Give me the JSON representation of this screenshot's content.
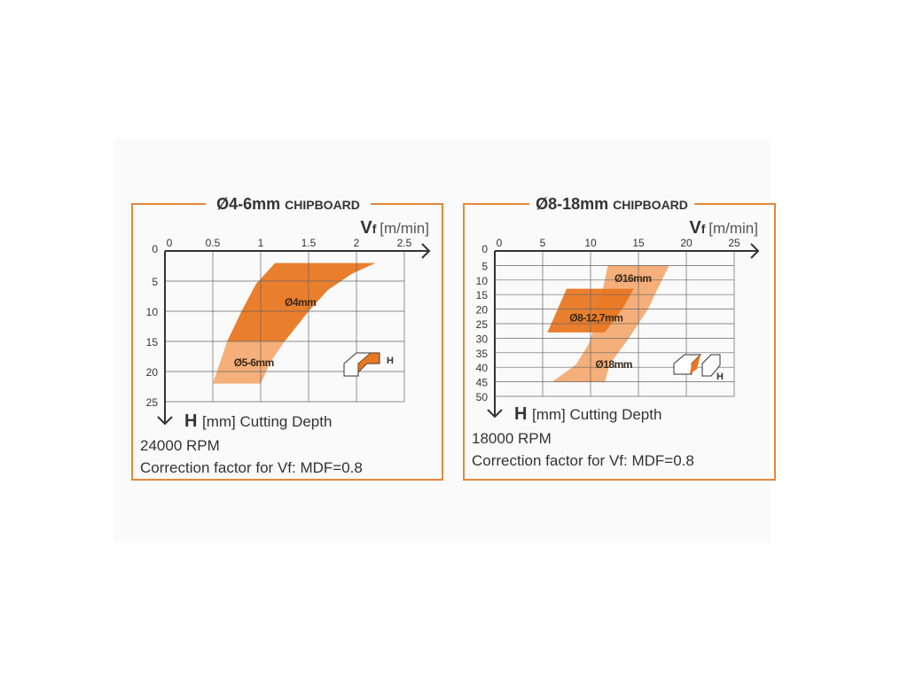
{
  "colors": {
    "frame": "#e8873a",
    "dark": "#e87722",
    "light": "#f3a66b",
    "grid": "#666666",
    "text": "#333333"
  },
  "chart_data": [
    {
      "type": "area",
      "title": "Ø4-6mm",
      "title_suffix": "Chipboard",
      "xlabel_main": "Vf",
      "xlabel_unit": "[m/min]",
      "ylabel_main": "H",
      "ylabel_unit": "[mm] Cutting Depth",
      "xlim": [
        0,
        2.5
      ],
      "ylim": [
        0,
        25
      ],
      "y_inverted": true,
      "grid": true,
      "xticks": [
        "0",
        "0.5",
        "1",
        "1.5",
        "2",
        "2.5"
      ],
      "yticks": [
        "0",
        "5",
        "10",
        "15",
        "20",
        "25"
      ],
      "regions": [
        {
          "name": "Ø5-6mm",
          "shade": "light",
          "label_at": [
            0.72,
            18.5
          ],
          "points": [
            [
              0.65,
              15
            ],
            [
              1.25,
              15
            ],
            [
              1.1,
              18.5
            ],
            [
              1.0,
              22
            ],
            [
              0.5,
              22
            ]
          ]
        },
        {
          "name": "Ø4mm",
          "shade": "dark",
          "label_at": [
            1.25,
            8.5
          ],
          "points": [
            [
              1.15,
              2
            ],
            [
              2.2,
              2
            ],
            [
              1.95,
              3.8
            ],
            [
              1.7,
              6.5
            ],
            [
              1.5,
              10
            ],
            [
              1.25,
              15
            ],
            [
              0.65,
              15
            ],
            [
              0.8,
              10
            ],
            [
              0.95,
              5.5
            ]
          ]
        }
      ],
      "notes": [
        "24000 RPM",
        "Correction factor for Vf: MDF=0.8"
      ]
    },
    {
      "type": "area",
      "title": "Ø8-18mm",
      "title_suffix": "Chipboard",
      "xlabel_main": "Vf",
      "xlabel_unit": "[m/min]",
      "ylabel_main": "H",
      "ylabel_unit": "[mm] Cutting Depth",
      "xlim": [
        0,
        25
      ],
      "ylim": [
        0,
        50
      ],
      "y_inverted": true,
      "grid": true,
      "xticks": [
        "0",
        "5",
        "10",
        "15",
        "20",
        "25"
      ],
      "yticks": [
        "0",
        "5",
        "10",
        "15",
        "20",
        "25",
        "30",
        "35",
        "40",
        "45",
        "50"
      ],
      "regions": [
        {
          "name": "Ø18mm",
          "shade": "light",
          "label_at": [
            10.5,
            39
          ],
          "points": [
            [
              11.8,
              5
            ],
            [
              18.2,
              5
            ],
            [
              17.3,
              11
            ],
            [
              16,
              20
            ],
            [
              14,
              30
            ],
            [
              12,
              39
            ],
            [
              11.5,
              45
            ],
            [
              6,
              45
            ],
            [
              8.5,
              39
            ],
            [
              9.8,
              32
            ],
            [
              10.2,
              28
            ],
            [
              11.3,
              13
            ]
          ]
        },
        {
          "name": "Ø16mm",
          "shade": "none",
          "label_at": [
            12.5,
            9.5
          ],
          "points": []
        },
        {
          "name": "Ø8-12,7mm",
          "shade": "dark",
          "label_at": [
            7.8,
            23
          ],
          "points": [
            [
              7.5,
              13
            ],
            [
              14.5,
              13
            ],
            [
              13.5,
              19
            ],
            [
              11.5,
              28
            ],
            [
              5.5,
              28
            ]
          ]
        }
      ],
      "notes": [
        "18000 RPM",
        "Correction factor for Vf: MDF=0.8"
      ]
    }
  ]
}
